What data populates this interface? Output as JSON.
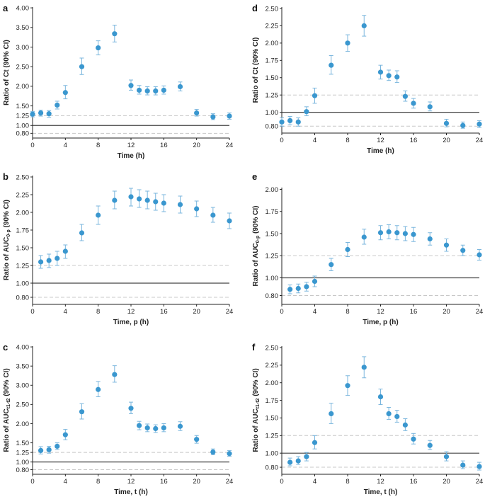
{
  "colors": {
    "point": "#3a97cf",
    "errorbar": "#7ab6dd",
    "refline": "#444444",
    "dashed": "#c8c8c8",
    "axis": "#222222"
  },
  "chart_data": [
    {
      "type": "scatter",
      "letter": "a",
      "ylabel": "Ratio of Ct (90% CI)",
      "ylabel_main": "Ratio of Ct (90% CI)",
      "ylabel_sub": "",
      "xlabel": "Time (h)",
      "xlim": [
        0,
        24
      ],
      "ylim": [
        0.68,
        4.02
      ],
      "xticks": [
        0,
        4,
        8,
        12,
        16,
        20,
        24
      ],
      "yticks": [
        0.8,
        1.0,
        1.25,
        1.5,
        2.0,
        2.5,
        3.0,
        3.5,
        4.0
      ],
      "ytick_labels": [
        "0.80",
        "1.00",
        "1.25",
        "1.50",
        "2.00",
        "2.50",
        "3.00",
        "3.50",
        "4.00"
      ],
      "reference_line": 1.0,
      "dashed_lines": [
        0.8,
        1.25
      ],
      "points": [
        {
          "x": 0,
          "y": 1.29,
          "lo": 1.22,
          "hi": 1.36
        },
        {
          "x": 1,
          "y": 1.32,
          "lo": 1.24,
          "hi": 1.39
        },
        {
          "x": 2,
          "y": 1.3,
          "lo": 1.21,
          "hi": 1.38
        },
        {
          "x": 3,
          "y": 1.52,
          "lo": 1.42,
          "hi": 1.62
        },
        {
          "x": 4,
          "y": 1.84,
          "lo": 1.68,
          "hi": 2.02
        },
        {
          "x": 6,
          "y": 2.5,
          "lo": 2.3,
          "hi": 2.72
        },
        {
          "x": 8,
          "y": 2.98,
          "lo": 2.8,
          "hi": 3.16
        },
        {
          "x": 10,
          "y": 3.34,
          "lo": 3.13,
          "hi": 3.56
        },
        {
          "x": 12,
          "y": 2.02,
          "lo": 1.9,
          "hi": 2.16
        },
        {
          "x": 13,
          "y": 1.9,
          "lo": 1.8,
          "hi": 2.02
        },
        {
          "x": 14,
          "y": 1.88,
          "lo": 1.78,
          "hi": 1.99
        },
        {
          "x": 15,
          "y": 1.88,
          "lo": 1.78,
          "hi": 1.99
        },
        {
          "x": 16,
          "y": 1.9,
          "lo": 1.8,
          "hi": 2.01
        },
        {
          "x": 18,
          "y": 1.99,
          "lo": 1.88,
          "hi": 2.11
        },
        {
          "x": 20,
          "y": 1.32,
          "lo": 1.24,
          "hi": 1.41
        },
        {
          "x": 22,
          "y": 1.22,
          "lo": 1.15,
          "hi": 1.3
        },
        {
          "x": 24,
          "y": 1.24,
          "lo": 1.16,
          "hi": 1.32
        }
      ]
    },
    {
      "type": "scatter",
      "letter": "d",
      "ylabel": "Ratio of Ct (90% CI)",
      "ylabel_main": "Ratio of Ct (90% CI)",
      "ylabel_sub": "",
      "xlabel": "Time (h)",
      "xlim": [
        0,
        24
      ],
      "ylim": [
        0.7,
        2.52
      ],
      "xticks": [
        0,
        4,
        8,
        12,
        16,
        20,
        24
      ],
      "yticks": [
        0.8,
        1.0,
        1.25,
        1.5,
        1.75,
        2.0,
        2.25,
        2.5
      ],
      "ytick_labels": [
        "0.80",
        "1.00",
        "1.25",
        "1.50",
        "1.75",
        "2.00",
        "2.25",
        "2.50"
      ],
      "reference_line": 1.0,
      "dashed_lines": [
        0.8,
        1.25
      ],
      "points": [
        {
          "x": 0,
          "y": 0.86,
          "lo": 0.8,
          "hi": 0.92
        },
        {
          "x": 1,
          "y": 0.88,
          "lo": 0.82,
          "hi": 0.94
        },
        {
          "x": 2,
          "y": 0.86,
          "lo": 0.8,
          "hi": 0.92
        },
        {
          "x": 3,
          "y": 1.01,
          "lo": 0.95,
          "hi": 1.08
        },
        {
          "x": 4,
          "y": 1.24,
          "lo": 1.13,
          "hi": 1.35
        },
        {
          "x": 6,
          "y": 1.68,
          "lo": 1.55,
          "hi": 1.82
        },
        {
          "x": 8,
          "y": 2.0,
          "lo": 1.88,
          "hi": 2.12
        },
        {
          "x": 10,
          "y": 2.25,
          "lo": 2.1,
          "hi": 2.4
        },
        {
          "x": 12,
          "y": 1.58,
          "lo": 1.48,
          "hi": 1.68
        },
        {
          "x": 13,
          "y": 1.53,
          "lo": 1.46,
          "hi": 1.61
        },
        {
          "x": 14,
          "y": 1.51,
          "lo": 1.43,
          "hi": 1.6
        },
        {
          "x": 15,
          "y": 1.23,
          "lo": 1.16,
          "hi": 1.31
        },
        {
          "x": 16,
          "y": 1.13,
          "lo": 1.06,
          "hi": 1.2
        },
        {
          "x": 18,
          "y": 1.08,
          "lo": 1.02,
          "hi": 1.15
        },
        {
          "x": 20,
          "y": 0.84,
          "lo": 0.79,
          "hi": 0.9
        },
        {
          "x": 22,
          "y": 0.81,
          "lo": 0.77,
          "hi": 0.86
        },
        {
          "x": 24,
          "y": 0.83,
          "lo": 0.78,
          "hi": 0.88
        }
      ]
    },
    {
      "type": "scatter",
      "letter": "b",
      "ylabel": "Ratio of AUC0-p (90% CI)",
      "ylabel_main": "Ratio of AUC",
      "ylabel_sub": "0-p",
      "ylabel_tail": " (90% CI)",
      "xlabel": "Time, p (h)",
      "xlim": [
        0,
        24
      ],
      "ylim": [
        0.7,
        2.52
      ],
      "xticks": [
        0,
        4,
        8,
        12,
        16,
        20,
        24
      ],
      "yticks": [
        0.8,
        1.0,
        1.25,
        1.5,
        1.75,
        2.0,
        2.25,
        2.5
      ],
      "ytick_labels": [
        "0.80",
        "1.00",
        "1.25",
        "1.50",
        "1.75",
        "2.00",
        "2.25",
        "2.50"
      ],
      "reference_line": 1.0,
      "dashed_lines": [
        0.8,
        1.25
      ],
      "points": [
        {
          "x": 1,
          "y": 1.3,
          "lo": 1.21,
          "hi": 1.39
        },
        {
          "x": 2,
          "y": 1.32,
          "lo": 1.22,
          "hi": 1.41
        },
        {
          "x": 3,
          "y": 1.35,
          "lo": 1.25,
          "hi": 1.45
        },
        {
          "x": 4,
          "y": 1.45,
          "lo": 1.35,
          "hi": 1.54
        },
        {
          "x": 6,
          "y": 1.71,
          "lo": 1.6,
          "hi": 1.83
        },
        {
          "x": 8,
          "y": 1.96,
          "lo": 1.83,
          "hi": 2.09
        },
        {
          "x": 10,
          "y": 2.17,
          "lo": 2.05,
          "hi": 2.3
        },
        {
          "x": 12,
          "y": 2.22,
          "lo": 2.09,
          "hi": 2.34
        },
        {
          "x": 13,
          "y": 2.19,
          "lo": 2.07,
          "hi": 2.32
        },
        {
          "x": 14,
          "y": 2.17,
          "lo": 2.05,
          "hi": 2.3
        },
        {
          "x": 15,
          "y": 2.15,
          "lo": 2.03,
          "hi": 2.27
        },
        {
          "x": 16,
          "y": 2.13,
          "lo": 2.01,
          "hi": 2.25
        },
        {
          "x": 18,
          "y": 2.11,
          "lo": 1.99,
          "hi": 2.23
        },
        {
          "x": 20,
          "y": 2.05,
          "lo": 1.94,
          "hi": 2.16
        },
        {
          "x": 22,
          "y": 1.96,
          "lo": 1.86,
          "hi": 2.07
        },
        {
          "x": 24,
          "y": 1.88,
          "lo": 1.77,
          "hi": 1.99
        }
      ]
    },
    {
      "type": "scatter",
      "letter": "e",
      "ylabel": "Ratio of AUC0-p (90% CI)",
      "ylabel_main": "Ratio of AUC",
      "ylabel_sub": "0-p",
      "ylabel_tail": " (90% CI)",
      "xlabel": "Time, p (h)",
      "xlim": [
        0,
        24
      ],
      "ylim": [
        0.7,
        2.02
      ],
      "xticks": [
        0,
        4,
        8,
        12,
        16,
        20,
        24
      ],
      "yticks": [
        0.8,
        1.0,
        1.25,
        1.5,
        1.75,
        2.0
      ],
      "ytick_labels": [
        "0.80",
        "1.00",
        "1.25",
        "1.50",
        "1.75",
        "2.00"
      ],
      "reference_line": 1.0,
      "dashed_lines": [
        0.8,
        1.25
      ],
      "points": [
        {
          "x": 1,
          "y": 0.87,
          "lo": 0.82,
          "hi": 0.92
        },
        {
          "x": 2,
          "y": 0.88,
          "lo": 0.83,
          "hi": 0.93
        },
        {
          "x": 3,
          "y": 0.9,
          "lo": 0.85,
          "hi": 0.95
        },
        {
          "x": 4,
          "y": 0.96,
          "lo": 0.9,
          "hi": 1.02
        },
        {
          "x": 6,
          "y": 1.15,
          "lo": 1.08,
          "hi": 1.22
        },
        {
          "x": 8,
          "y": 1.32,
          "lo": 1.24,
          "hi": 1.4
        },
        {
          "x": 10,
          "y": 1.46,
          "lo": 1.38,
          "hi": 1.55
        },
        {
          "x": 12,
          "y": 1.51,
          "lo": 1.43,
          "hi": 1.59
        },
        {
          "x": 13,
          "y": 1.52,
          "lo": 1.44,
          "hi": 1.6
        },
        {
          "x": 14,
          "y": 1.51,
          "lo": 1.43,
          "hi": 1.59
        },
        {
          "x": 15,
          "y": 1.5,
          "lo": 1.42,
          "hi": 1.58
        },
        {
          "x": 16,
          "y": 1.49,
          "lo": 1.41,
          "hi": 1.57
        },
        {
          "x": 18,
          "y": 1.44,
          "lo": 1.37,
          "hi": 1.51
        },
        {
          "x": 20,
          "y": 1.37,
          "lo": 1.3,
          "hi": 1.44
        },
        {
          "x": 22,
          "y": 1.31,
          "lo": 1.25,
          "hi": 1.37
        },
        {
          "x": 24,
          "y": 1.26,
          "lo": 1.2,
          "hi": 1.32
        }
      ]
    },
    {
      "type": "scatter",
      "letter": "c",
      "ylabel": "Ratio of AUCt1-t2 (90% CI)",
      "ylabel_main": "Ratio of AUC",
      "ylabel_sub": "t1-t2",
      "ylabel_tail": " (90% CI)",
      "xlabel": "Time, t (h)",
      "xlim": [
        0,
        24
      ],
      "ylim": [
        0.68,
        4.02
      ],
      "xticks": [
        0,
        4,
        8,
        12,
        16,
        20,
        24
      ],
      "yticks": [
        0.8,
        1.0,
        1.25,
        1.5,
        2.0,
        2.5,
        3.0,
        3.5,
        4.0
      ],
      "ytick_labels": [
        "0.80",
        "1.00",
        "1.25",
        "1.50",
        "2.00",
        "2.50",
        "3.00",
        "3.50",
        "4.00"
      ],
      "reference_line": 1.0,
      "dashed_lines": [
        0.8,
        1.25
      ],
      "points": [
        {
          "x": 1,
          "y": 1.3,
          "lo": 1.21,
          "hi": 1.4
        },
        {
          "x": 2,
          "y": 1.32,
          "lo": 1.23,
          "hi": 1.41
        },
        {
          "x": 3,
          "y": 1.41,
          "lo": 1.32,
          "hi": 1.5
        },
        {
          "x": 4,
          "y": 1.71,
          "lo": 1.58,
          "hi": 1.85
        },
        {
          "x": 6,
          "y": 2.31,
          "lo": 2.12,
          "hi": 2.52
        },
        {
          "x": 8,
          "y": 2.89,
          "lo": 2.7,
          "hi": 3.1
        },
        {
          "x": 10,
          "y": 3.28,
          "lo": 3.08,
          "hi": 3.51
        },
        {
          "x": 12,
          "y": 2.4,
          "lo": 2.26,
          "hi": 2.56
        },
        {
          "x": 13,
          "y": 1.95,
          "lo": 1.84,
          "hi": 2.06
        },
        {
          "x": 14,
          "y": 1.89,
          "lo": 1.79,
          "hi": 1.99
        },
        {
          "x": 15,
          "y": 1.87,
          "lo": 1.77,
          "hi": 1.97
        },
        {
          "x": 16,
          "y": 1.89,
          "lo": 1.79,
          "hi": 2.0
        },
        {
          "x": 18,
          "y": 1.93,
          "lo": 1.82,
          "hi": 2.05
        },
        {
          "x": 20,
          "y": 1.59,
          "lo": 1.49,
          "hi": 1.69
        },
        {
          "x": 22,
          "y": 1.26,
          "lo": 1.19,
          "hi": 1.34
        },
        {
          "x": 24,
          "y": 1.22,
          "lo": 1.15,
          "hi": 1.3
        }
      ]
    },
    {
      "type": "scatter",
      "letter": "f",
      "ylabel": "Ratio of AUCt1-t2 (90% CI)",
      "ylabel_main": "Ratio of AUC",
      "ylabel_sub": "t1-t2",
      "ylabel_tail": " (90% CI)",
      "xlabel": "Time, t (h)",
      "xlim": [
        0,
        24
      ],
      "ylim": [
        0.7,
        2.52
      ],
      "xticks": [
        0,
        4,
        8,
        12,
        16,
        20,
        24
      ],
      "yticks": [
        0.8,
        1.0,
        1.25,
        1.5,
        1.75,
        2.0,
        2.25,
        2.5
      ],
      "ytick_labels": [
        "0.80",
        "1.00",
        "1.25",
        "1.50",
        "1.75",
        "2.00",
        "2.25",
        "2.50"
      ],
      "reference_line": 1.0,
      "dashed_lines": [
        0.8,
        1.25
      ],
      "points": [
        {
          "x": 1,
          "y": 0.87,
          "lo": 0.82,
          "hi": 0.93
        },
        {
          "x": 2,
          "y": 0.89,
          "lo": 0.84,
          "hi": 0.95
        },
        {
          "x": 3,
          "y": 0.95,
          "lo": 0.89,
          "hi": 1.01
        },
        {
          "x": 4,
          "y": 1.15,
          "lo": 1.06,
          "hi": 1.25
        },
        {
          "x": 6,
          "y": 1.56,
          "lo": 1.42,
          "hi": 1.71
        },
        {
          "x": 8,
          "y": 1.96,
          "lo": 1.82,
          "hi": 2.1
        },
        {
          "x": 10,
          "y": 2.22,
          "lo": 2.07,
          "hi": 2.37
        },
        {
          "x": 12,
          "y": 1.8,
          "lo": 1.69,
          "hi": 1.91
        },
        {
          "x": 13,
          "y": 1.56,
          "lo": 1.48,
          "hi": 1.65
        },
        {
          "x": 14,
          "y": 1.52,
          "lo": 1.44,
          "hi": 1.61
        },
        {
          "x": 15,
          "y": 1.4,
          "lo": 1.32,
          "hi": 1.49
        },
        {
          "x": 16,
          "y": 1.2,
          "lo": 1.13,
          "hi": 1.28
        },
        {
          "x": 18,
          "y": 1.11,
          "lo": 1.05,
          "hi": 1.18
        },
        {
          "x": 20,
          "y": 0.95,
          "lo": 0.89,
          "hi": 1.02
        },
        {
          "x": 22,
          "y": 0.83,
          "lo": 0.78,
          "hi": 0.89
        },
        {
          "x": 24,
          "y": 0.81,
          "lo": 0.76,
          "hi": 0.87
        }
      ]
    }
  ]
}
